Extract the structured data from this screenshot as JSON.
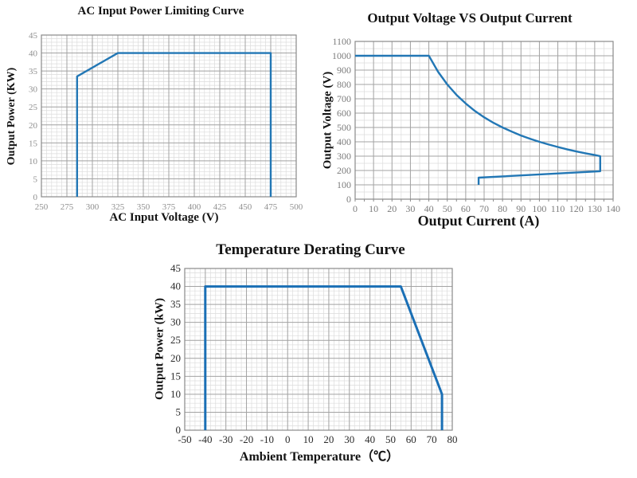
{
  "colors": {
    "curve_blue": "#2277b5",
    "grid_minor": "#dcdcdc",
    "grid_major": "#a3a3a3",
    "axis_border": "#8a8a8a"
  },
  "chart_data": [
    {
      "type": "line",
      "title": "AC Input Power Limiting Curve",
      "xlabel": "AC Input Voltage (V)",
      "ylabel": "Output Power (KW)",
      "xlim": [
        250,
        500
      ],
      "xtick": 25,
      "xminor": 5,
      "ylim": [
        0,
        45
      ],
      "ytick": 5,
      "yminor": 1,
      "grid": true,
      "legend": false,
      "line_color": "#2277b5",
      "line_width": 2.4,
      "tick_color": "#8f8f8f",
      "x_tick_marks": false,
      "points": [
        [
          285,
          0
        ],
        [
          285,
          33.5
        ],
        [
          325,
          40
        ],
        [
          475,
          40
        ],
        [
          475,
          0
        ]
      ]
    },
    {
      "type": "line",
      "title": "Output Voltage VS Output Current",
      "xlabel": "Output Current (A)",
      "ylabel": "Output Voltage (V)",
      "xlim": [
        0,
        140
      ],
      "xtick": 10,
      "xminor": 5,
      "ylim": [
        0,
        1100
      ],
      "ytick": 100,
      "yminor": 50,
      "grid": true,
      "legend": false,
      "line_color": "#2277b5",
      "line_width": 2.4,
      "tick_color": "#7c7c7c",
      "x_tick_marks": true,
      "points": [
        [
          0,
          1000
        ],
        [
          40,
          1000
        ],
        [
          45,
          889
        ],
        [
          50,
          800
        ],
        [
          55,
          727
        ],
        [
          60,
          667
        ],
        [
          65,
          615
        ],
        [
          70,
          571
        ],
        [
          75,
          533
        ],
        [
          80,
          500
        ],
        [
          85,
          471
        ],
        [
          90,
          444
        ],
        [
          95,
          421
        ],
        [
          100,
          400
        ],
        [
          105,
          381
        ],
        [
          110,
          364
        ],
        [
          115,
          348
        ],
        [
          120,
          333
        ],
        [
          125,
          320
        ],
        [
          130,
          308
        ],
        [
          133,
          300
        ],
        [
          133,
          195
        ],
        [
          67,
          150
        ],
        [
          67,
          100
        ]
      ]
    },
    {
      "type": "line",
      "title": "Temperature Derating Curve",
      "xlabel": "Ambient Temperature（℃）",
      "ylabel": "Output Power (kW)",
      "xlim": [
        -50,
        80
      ],
      "xtick": 10,
      "xminor": 2.5,
      "ylim": [
        0,
        45
      ],
      "ytick": 5,
      "yminor": 1.25,
      "grid": true,
      "legend": false,
      "line_color": "#1a6fb5",
      "line_width": 3,
      "tick_color": "#2b2b2b",
      "x_tick_marks": false,
      "points": [
        [
          -40,
          0
        ],
        [
          -40,
          40
        ],
        [
          55,
          40
        ],
        [
          75,
          10
        ],
        [
          75,
          0
        ]
      ]
    }
  ]
}
